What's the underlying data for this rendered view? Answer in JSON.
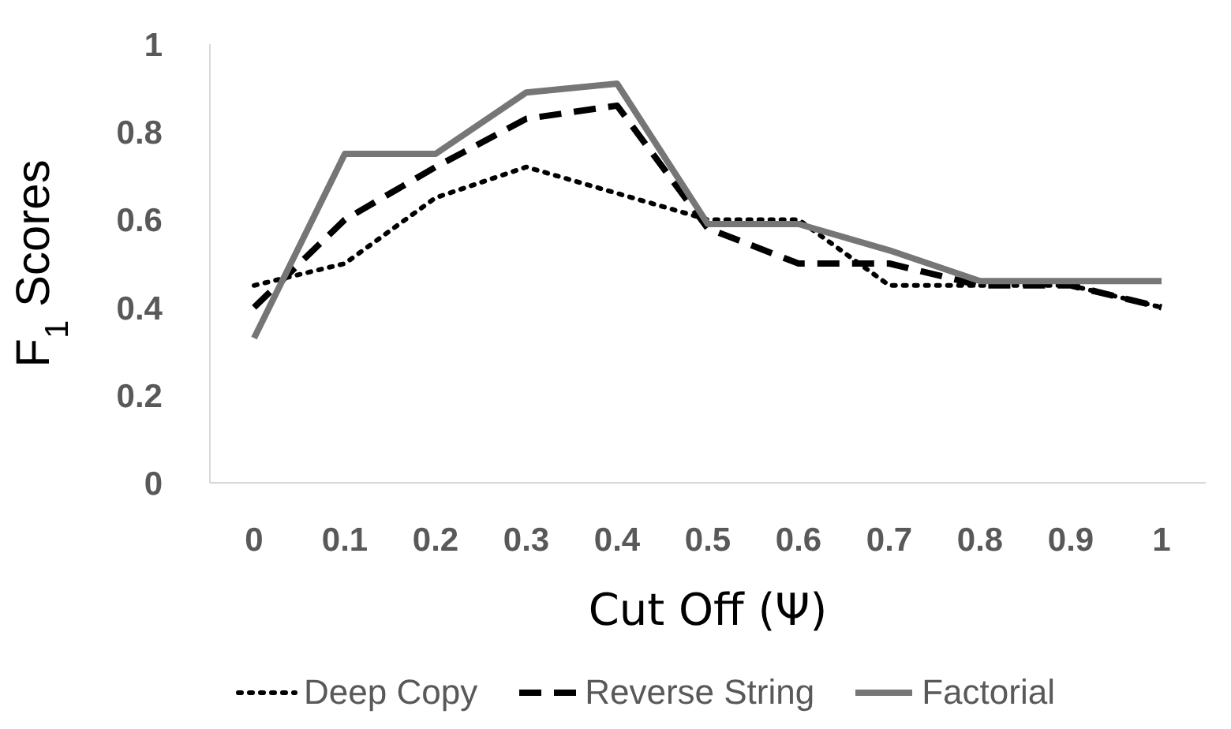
{
  "chart_data": {
    "type": "line",
    "xlabel": "Cut Off (Ψ)",
    "ylabel": "F$_{1}$ Scores",
    "categories": [
      "0",
      "0.1",
      "0.2",
      "0.3",
      "0.4",
      "0.5",
      "0.6",
      "0.7",
      "0.8",
      "0.9",
      "1"
    ],
    "series": [
      {
        "name": "Deep Copy",
        "color": "#000000",
        "line_style": "dotted",
        "values": [
          0.45,
          0.5,
          0.65,
          0.72,
          0.66,
          0.6,
          0.6,
          0.45,
          0.45,
          0.45,
          0.4
        ]
      },
      {
        "name": "Reverse String",
        "color": "#000000",
        "line_style": "dashed",
        "values": [
          0.4,
          0.6,
          0.72,
          0.83,
          0.86,
          0.58,
          0.5,
          0.5,
          0.45,
          0.45,
          0.4
        ]
      },
      {
        "name": "Factorial",
        "color": "#767676",
        "line_style": "solid",
        "values": [
          0.33,
          0.75,
          0.75,
          0.89,
          0.91,
          0.59,
          0.59,
          0.53,
          0.46,
          0.46,
          0.46
        ]
      }
    ],
    "ylim": [
      0,
      1
    ],
    "yticks": [
      0,
      0.2,
      0.4,
      0.6,
      0.8,
      1
    ],
    "grid": false,
    "legend": "bottom",
    "marker": "none"
  }
}
